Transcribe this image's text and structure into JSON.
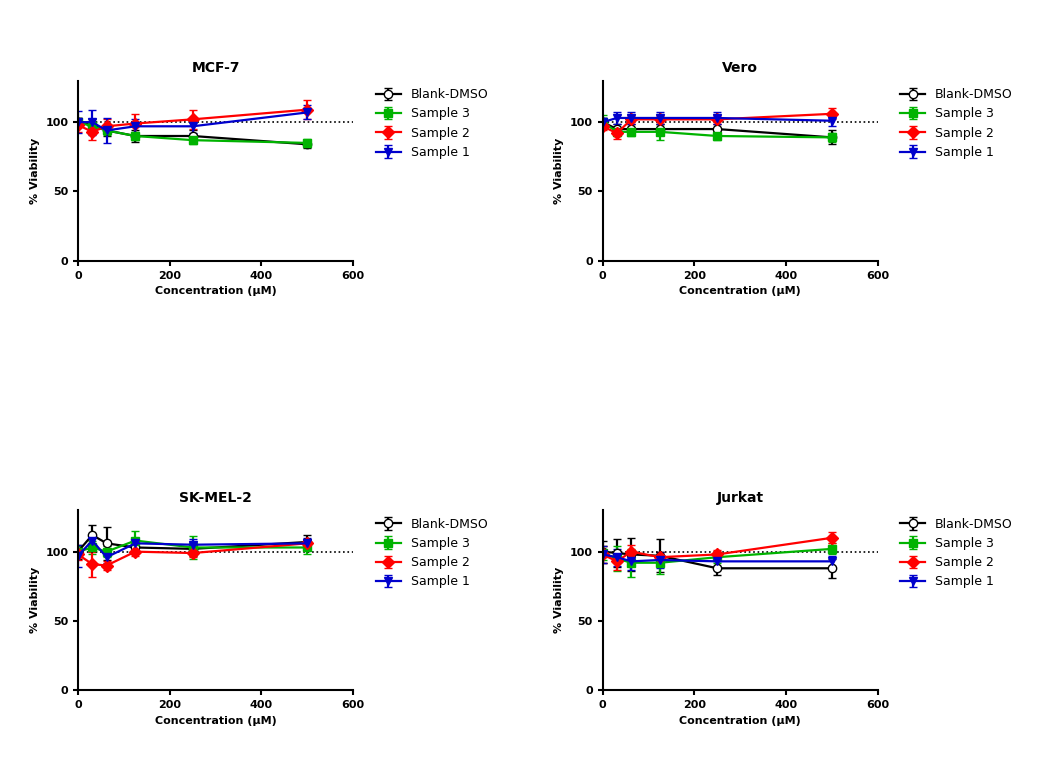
{
  "chart_data": [
    {
      "type": "line",
      "title": "MCF-7",
      "x_label": "Concentration (µM)",
      "y_label": "% Viability",
      "x": [
        0,
        31.25,
        62.5,
        125,
        250,
        500
      ],
      "xlim": [
        0,
        600
      ],
      "xticks": [
        0,
        200,
        400,
        600
      ],
      "ylim": [
        0,
        130
      ],
      "yticks": [
        0,
        50,
        100
      ],
      "reference": 100,
      "legend": "upper left",
      "series": [
        {
          "name": "Blank-DMSO",
          "color": "#000000",
          "marker": "o",
          "values": [
            100,
            98,
            94,
            90,
            90,
            84
          ],
          "errors": [
            3,
            4,
            4,
            4,
            4,
            3
          ]
        },
        {
          "name": "Sample 3",
          "color": "#00b300",
          "marker": "s",
          "values": [
            100,
            97,
            94,
            90,
            87,
            85
          ],
          "errors": [
            3,
            3,
            3,
            3,
            3,
            3
          ]
        },
        {
          "name": "Sample 2",
          "color": "#ff0000",
          "marker": "D",
          "values": [
            98,
            93,
            97,
            99,
            102,
            109
          ],
          "errors": [
            5,
            6,
            5,
            7,
            7,
            7
          ]
        },
        {
          "name": "Sample 1",
          "color": "#0000cc",
          "marker": "v",
          "values": [
            100,
            100,
            94,
            97,
            97,
            107
          ],
          "errors": [
            8,
            9,
            9,
            5,
            5,
            5
          ]
        }
      ]
    },
    {
      "type": "line",
      "title": "Vero",
      "x_label": "Concentration (µM)",
      "y_label": "% Viability",
      "x": [
        0,
        31.25,
        62.5,
        125,
        250,
        500
      ],
      "xlim": [
        0,
        600
      ],
      "xticks": [
        0,
        200,
        400,
        600
      ],
      "ylim": [
        0,
        130
      ],
      "yticks": [
        0,
        50,
        100
      ],
      "reference": 100,
      "legend": "upper left",
      "series": [
        {
          "name": "Blank-DMSO",
          "color": "#000000",
          "marker": "o",
          "values": [
            100,
            95,
            95,
            95,
            95,
            89
          ],
          "errors": [
            3,
            4,
            4,
            4,
            4,
            5
          ]
        },
        {
          "name": "Sample 3",
          "color": "#00b300",
          "marker": "s",
          "values": [
            100,
            93,
            93,
            93,
            90,
            89
          ],
          "errors": [
            5,
            3,
            3,
            6,
            3,
            3
          ]
        },
        {
          "name": "Sample 2",
          "color": "#ff0000",
          "marker": "D",
          "values": [
            97,
            92,
            102,
            102,
            102,
            106
          ],
          "errors": [
            3,
            4,
            3,
            3,
            3,
            4
          ]
        },
        {
          "name": "Sample 1",
          "color": "#0000cc",
          "marker": "v",
          "values": [
            100,
            103,
            103,
            103,
            103,
            101
          ],
          "errors": [
            3,
            4,
            4,
            4,
            4,
            4
          ]
        }
      ]
    },
    {
      "type": "line",
      "title": "SK-MEL-2",
      "x_label": "Concentration (µM)",
      "y_label": "% Viability",
      "x": [
        0,
        31.25,
        62.5,
        125,
        250,
        500
      ],
      "xlim": [
        0,
        600
      ],
      "xticks": [
        0,
        200,
        400,
        600
      ],
      "ylim": [
        0,
        130
      ],
      "yticks": [
        0,
        50,
        100
      ],
      "reference": 100,
      "legend": "upper left",
      "series": [
        {
          "name": "Blank-DMSO",
          "color": "#000000",
          "marker": "o",
          "values": [
            100,
            112,
            106,
            103,
            102,
            107
          ],
          "errors": [
            5,
            7,
            12,
            4,
            5,
            5
          ]
        },
        {
          "name": "Sample 3",
          "color": "#00b300",
          "marker": "s",
          "values": [
            100,
            103,
            100,
            108,
            103,
            103
          ],
          "errors": [
            4,
            5,
            4,
            7,
            8,
            5
          ]
        },
        {
          "name": "Sample 2",
          "color": "#ff0000",
          "marker": "D",
          "values": [
            98,
            91,
            90,
            100,
            99,
            106
          ],
          "errors": [
            4,
            9,
            3,
            3,
            3,
            3
          ]
        },
        {
          "name": "Sample 1",
          "color": "#0000cc",
          "marker": "v",
          "values": [
            97,
            108,
            96,
            106,
            105,
            106
          ],
          "errors": [
            8,
            5,
            4,
            4,
            4,
            4
          ]
        }
      ]
    },
    {
      "type": "line",
      "title": "Jurkat",
      "x_label": "Concentration (µM)",
      "y_label": "% Viability",
      "x": [
        0,
        31.25,
        62.5,
        125,
        250,
        500
      ],
      "xlim": [
        0,
        600
      ],
      "xticks": [
        0,
        200,
        400,
        600
      ],
      "ylim": [
        0,
        130
      ],
      "yticks": [
        0,
        50,
        100
      ],
      "reference": 100,
      "legend": "upper left",
      "series": [
        {
          "name": "Blank-DMSO",
          "color": "#000000",
          "marker": "o",
          "values": [
            100,
            99,
            98,
            97,
            88,
            88
          ],
          "errors": [
            8,
            10,
            12,
            12,
            5,
            7
          ]
        },
        {
          "name": "Sample 3",
          "color": "#00b300",
          "marker": "s",
          "values": [
            99,
            95,
            92,
            92,
            96,
            102
          ],
          "errors": [
            5,
            9,
            10,
            8,
            4,
            4
          ]
        },
        {
          "name": "Sample 2",
          "color": "#ff0000",
          "marker": "D",
          "values": [
            98,
            93,
            100,
            96,
            98,
            110
          ],
          "errors": [
            6,
            6,
            5,
            4,
            3,
            4
          ]
        },
        {
          "name": "Sample 1",
          "color": "#0000cc",
          "marker": "v",
          "values": [
            98,
            96,
            93,
            94,
            93,
            93
          ],
          "errors": [
            6,
            6,
            6,
            6,
            4,
            4
          ]
        }
      ]
    }
  ]
}
